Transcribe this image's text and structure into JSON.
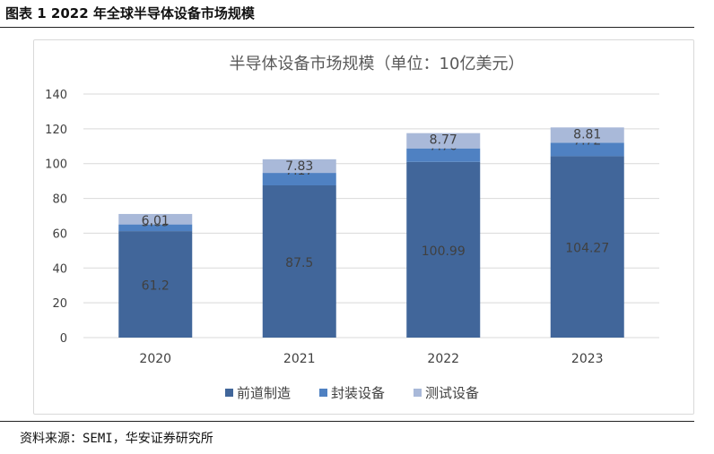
{
  "figure_caption": "图表 1 2022 年全球半导体设备市场规模",
  "source": "资料来源：SEMI，华安证券研究所",
  "chart_data": {
    "type": "bar",
    "stacked": true,
    "title": "半导体设备市场规模（单位：10亿美元）",
    "xlabel": "",
    "ylabel": "",
    "categories": [
      "2020",
      "2021",
      "2022",
      "2023"
    ],
    "ylim": [
      0,
      140
    ],
    "yticks": [
      "0",
      "20",
      "40",
      "60",
      "80",
      "100",
      "120",
      "140"
    ],
    "grid": true,
    "legend_position": "bottom",
    "series": [
      {
        "name": "前道制造",
        "color": "#41669a",
        "values": [
          61.2,
          87.5,
          100.99,
          104.27
        ],
        "labels": [
          "61.2",
          "87.5",
          "100.99",
          "104.27"
        ]
      },
      {
        "name": "封装设备",
        "color": "#4f81c2",
        "values": [
          3.85,
          7.17,
          7.76,
          7.72
        ],
        "labels": [
          "3.85",
          "7.17",
          "7.76",
          "7.72"
        ]
      },
      {
        "name": "测试设备",
        "color": "#a9b9d9",
        "values": [
          6.01,
          7.83,
          8.77,
          8.81
        ],
        "labels": [
          "6.01",
          "7.83",
          "8.77",
          "8.81"
        ]
      }
    ]
  }
}
